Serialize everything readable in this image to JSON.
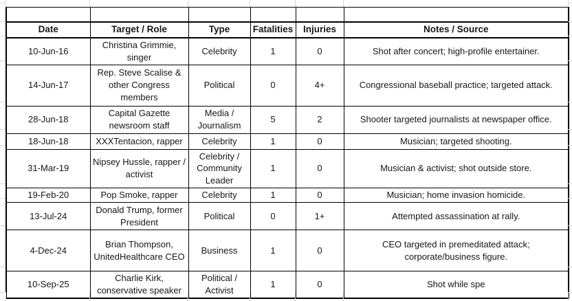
{
  "table": {
    "columns": [
      "Date",
      "Target / Role",
      "Type",
      "Fatalities",
      "Injuries",
      "Notes / Source"
    ],
    "rows": [
      {
        "date": "10-Jun-16",
        "target": "Christina Grimmie, singer",
        "type": "Celebrity",
        "fatalities": "1",
        "injuries": "0",
        "notes": "Shot after concert; high-profile entertainer."
      },
      {
        "date": "14-Jun-17",
        "target": "Rep. Steve Scalise & other Congress members",
        "type": "Political",
        "fatalities": "0",
        "injuries": "4+",
        "notes": "Congressional baseball practice; targeted attack."
      },
      {
        "date": "28-Jun-18",
        "target": "Capital Gazette newsroom staff",
        "type": "Media / Journalism",
        "fatalities": "5",
        "injuries": "2",
        "notes": "Shooter targeted journalists at newspaper office."
      },
      {
        "date": "18-Jun-18",
        "target": "XXXTentacion, rapper",
        "type": "Celebrity",
        "fatalities": "1",
        "injuries": "0",
        "notes": "Musician; targeted shooting."
      },
      {
        "date": "31-Mar-19",
        "target": "Nipsey Hussle, rapper / activist",
        "type": "Celebrity / Community Leader",
        "fatalities": "1",
        "injuries": "0",
        "notes": "Musician & activist; shot outside store."
      },
      {
        "date": "19-Feb-20",
        "target": "Pop Smoke, rapper",
        "type": "Celebrity",
        "fatalities": "1",
        "injuries": "0",
        "notes": "Musician; home invasion homicide."
      },
      {
        "date": "13-Jul-24",
        "target": "Donald Trump, former President",
        "type": "Political",
        "fatalities": "0",
        "injuries": "1+",
        "notes": "Attempted assassination at rally."
      },
      {
        "date": "4-Dec-24",
        "target": "Brian Thompson, UnitedHealthcare CEO",
        "type": "Business",
        "fatalities": "1",
        "injuries": "0",
        "notes": "CEO targeted in premeditated attack; corporate/business figure."
      },
      {
        "date": "10-Sep-25",
        "target": "Charlie Kirk, conservative speaker",
        "type": "Political / Activist",
        "fatalities": "1",
        "injuries": "0",
        "notes": "Shot while spe"
      }
    ]
  },
  "colors": {
    "table_border": "#000000",
    "gridline": "#d7d7d7",
    "text": "#161616",
    "background": "#ffffff"
  }
}
